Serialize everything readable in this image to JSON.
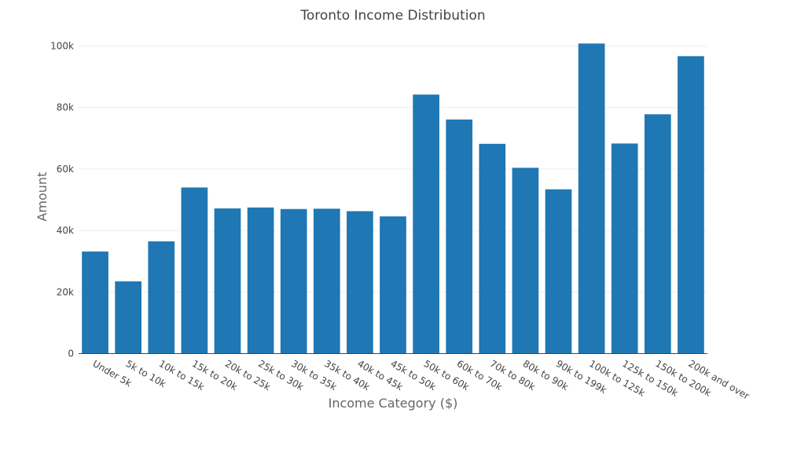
{
  "chart_data": {
    "type": "bar",
    "title": "Toronto Income Distribution",
    "xlabel": "Income Category ($)",
    "ylabel": "Amount",
    "categories": [
      "Under 5k",
      "5k to 10k",
      "10k to 15k",
      "15k to 20k",
      "20k to 25k",
      "25k to 30k",
      "30k to 35k",
      "35k to 40k",
      "40k to 45k",
      "45k to 50k",
      "50k to 60k",
      "60k to 70k",
      "70k to 80k",
      "80k to 90k",
      "90k to 199k",
      "100k to 125k",
      "125k to 150k",
      "150k to 200k",
      "200k and over"
    ],
    "values": [
      33200,
      23500,
      36500,
      54000,
      47200,
      47500,
      47000,
      47100,
      46300,
      44600,
      84200,
      76100,
      68200,
      60400,
      53400,
      100800,
      68300,
      77800,
      96700
    ],
    "ylim": [
      0,
      106000
    ],
    "yticks": [
      0,
      20000,
      40000,
      60000,
      80000,
      100000
    ],
    "yticklabels": [
      "0",
      "20k",
      "40k",
      "60k",
      "80k",
      "100k"
    ],
    "bar_color": "#1f77b4",
    "grid": true,
    "legend": false
  }
}
